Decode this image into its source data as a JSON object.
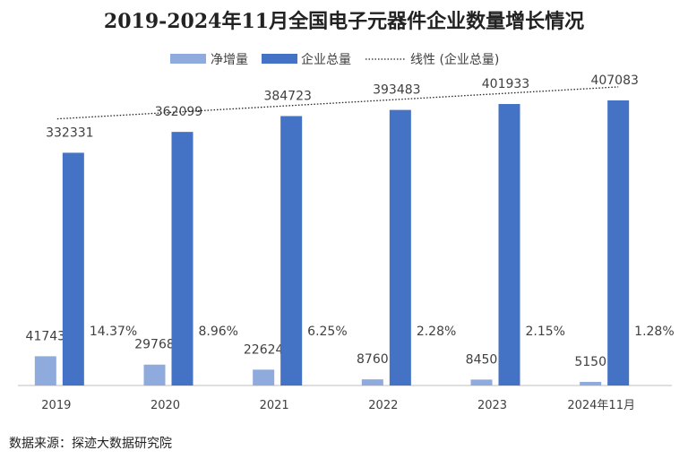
{
  "chart_data": {
    "type": "bar",
    "title": "2019-2024年11月全国电子元器件企业数量增长情况",
    "categories": [
      "2019",
      "2020",
      "2021",
      "2022",
      "2023",
      "2024年11月"
    ],
    "series": [
      {
        "name": "净增量",
        "values": [
          41743,
          29768,
          22624,
          8760,
          8450,
          5150
        ],
        "color": "#8faadc"
      },
      {
        "name": "企业总量",
        "values": [
          332331,
          362099,
          384723,
          393483,
          401933,
          407083
        ],
        "color": "#4472c4"
      }
    ],
    "growth_rates": [
      "14.37%",
      "8.96%",
      "6.25%",
      "2.28%",
      "2.15%",
      "1.28%"
    ],
    "trendline": {
      "name": "线性 (企业总量)",
      "series": "企业总量"
    },
    "ylim": [
      0,
      520000
    ],
    "xlabel": "",
    "ylabel": "",
    "legend_position": "top"
  },
  "source": "数据来源：探迹大数据研究院"
}
